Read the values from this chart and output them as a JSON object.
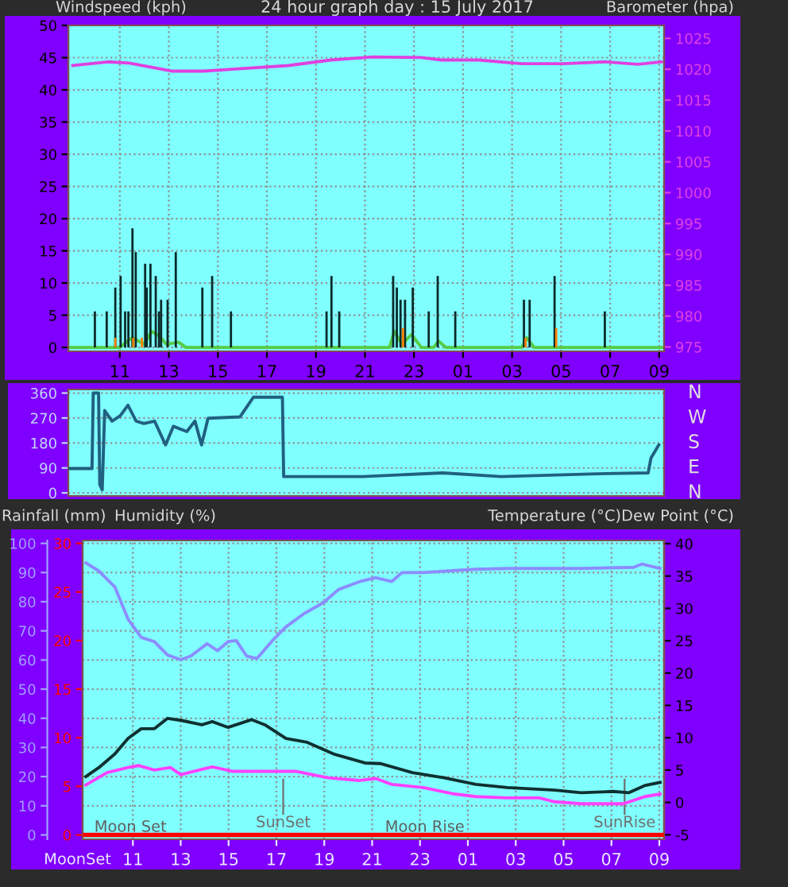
{
  "chart_data": [
    {
      "type": "line",
      "title": "24 hour graph day : 15 July 2017",
      "ylabel": "Windspeed (kph)",
      "y2label": "Barometer (hpa)",
      "xlim": [
        "2017-07-15T08:54",
        "2017-07-16T09:12"
      ],
      "xticks": [
        {
          "value": "2017-07-15T11:00",
          "label": "11"
        },
        {
          "value": "2017-07-15T13:00",
          "label": "13"
        },
        {
          "value": "2017-07-15T15:00",
          "label": "15"
        },
        {
          "value": "2017-07-15T17:00",
          "label": "17"
        },
        {
          "value": "2017-07-15T19:00",
          "label": "19"
        },
        {
          "value": "2017-07-15T21:00",
          "label": "21"
        },
        {
          "value": "2017-07-15T23:00",
          "label": "23"
        },
        {
          "value": "2017-07-16T01:00",
          "label": "01"
        },
        {
          "value": "2017-07-16T03:00",
          "label": "03"
        },
        {
          "value": "2017-07-16T05:00",
          "label": "05"
        },
        {
          "value": "2017-07-16T07:00",
          "label": "07"
        },
        {
          "value": "2017-07-16T09:00",
          "label": "09"
        }
      ],
      "ylim": [
        -0.6,
        50
      ],
      "yticks": [
        0,
        5,
        10,
        15,
        20,
        25,
        30,
        35,
        40,
        45,
        50
      ],
      "y2lim": [
        974.3,
        1027.1
      ],
      "y2ticks": [
        975,
        980,
        985,
        990,
        995,
        1000,
        1005,
        1010,
        1015,
        1020,
        1025
      ],
      "grid": true,
      "legend": false,
      "series": [
        {
          "type": "bar",
          "color": "#0a2a2a",
          "x": [
            "2017-07-15T09:59",
            "2017-07-15T10:28",
            "2017-07-15T10:49",
            "2017-07-15T11:02",
            "2017-07-15T11:13",
            "2017-07-15T11:21",
            "2017-07-15T11:31",
            "2017-07-15T11:39",
            "2017-07-15T12:02",
            "2017-07-15T12:06",
            "2017-07-15T12:15",
            "2017-07-15T12:28",
            "2017-07-15T12:36",
            "2017-07-15T12:41",
            "2017-07-15T12:57",
            "2017-07-15T13:17",
            "2017-07-15T14:22",
            "2017-07-15T14:46",
            "2017-07-15T15:32",
            "2017-07-15T19:26",
            "2017-07-15T19:38",
            "2017-07-15T19:57",
            "2017-07-15T22:09",
            "2017-07-15T22:18",
            "2017-07-15T22:27",
            "2017-07-15T22:38",
            "2017-07-15T22:57",
            "2017-07-15T23:36",
            "2017-07-15T23:58",
            "2017-07-16T00:41",
            "2017-07-16T03:29",
            "2017-07-16T03:43",
            "2017-07-16T04:44",
            "2017-07-16T06:47"
          ],
          "values": [
            5.6,
            5.6,
            9.3,
            11.1,
            5.6,
            5.6,
            18.5,
            14.8,
            13,
            9.3,
            13,
            11.1,
            5.6,
            7.4,
            7.4,
            14.8,
            9.3,
            11.1,
            5.6,
            5.6,
            11.1,
            5.6,
            11.1,
            9.3,
            7.4,
            7.4,
            9.3,
            5.6,
            11.1,
            5.6,
            7.4,
            7.4,
            11.1,
            5.6
          ]
        },
        {
          "type": "bar",
          "color": "#ff8000",
          "x": [
            "2017-07-15T10:49",
            "2017-07-15T11:33",
            "2017-07-15T11:54",
            "2017-07-15T22:33",
            "2017-07-16T03:33",
            "2017-07-16T04:48"
          ],
          "values": [
            1.5,
            1.5,
            1.5,
            3.0,
            1.5,
            3.0
          ]
        },
        {
          "type": "line",
          "color": "#55cc44",
          "x": [
            "2017-07-15T09:00",
            "2017-07-15T11:00",
            "2017-07-15T11:30",
            "2017-07-15T12:00",
            "2017-07-15T12:18",
            "2017-07-15T12:36",
            "2017-07-15T12:54",
            "2017-07-15T13:24",
            "2017-07-15T13:42",
            "2017-07-15T22:00",
            "2017-07-15T22:12",
            "2017-07-15T22:30",
            "2017-07-15T22:54",
            "2017-07-15T23:18",
            "2017-07-15T23:48",
            "2017-07-16T00:00",
            "2017-07-16T00:18",
            "2017-07-16T03:24",
            "2017-07-16T03:36",
            "2017-07-16T03:54",
            "2017-07-16T09:06"
          ],
          "values": [
            0,
            0,
            1.5,
            0.5,
            2.5,
            1.8,
            0.5,
            0.8,
            0,
            0,
            2.5,
            0.5,
            2.0,
            0,
            0,
            1.0,
            0,
            0,
            1.5,
            0,
            0
          ]
        },
        {
          "type": "line",
          "axis": "y2",
          "color": "#e040e0",
          "x": [
            "2017-07-15T09:05",
            "2017-07-15T10:31",
            "2017-07-15T11:23",
            "2017-07-15T12:28",
            "2017-07-15T13:07",
            "2017-07-15T14:25",
            "2017-07-15T15:56",
            "2017-07-15T17:52",
            "2017-07-15T19:36",
            "2017-07-15T21:20",
            "2017-07-15T23:17",
            "2017-07-16T00:08",
            "2017-07-16T01:39",
            "2017-07-16T03:23",
            "2017-07-16T05:07",
            "2017-07-16T06:50",
            "2017-07-16T08:08",
            "2017-07-16T09:06"
          ],
          "values": [
            1020.6,
            1021.2,
            1021.0,
            1020.2,
            1019.7,
            1019.7,
            1020.1,
            1020.6,
            1021.5,
            1022.0,
            1021.9,
            1021.5,
            1021.5,
            1020.9,
            1020.9,
            1021.2,
            1020.8,
            1021.2
          ]
        }
      ]
    },
    {
      "type": "line",
      "xlim": [
        "2017-07-15T08:54",
        "2017-07-16T09:12"
      ],
      "ylim": [
        -11,
        373
      ],
      "yticks": [
        0,
        90,
        180,
        270,
        360
      ],
      "annotations": [
        "N",
        "W",
        "S",
        "E",
        "N"
      ],
      "grid": "y",
      "tick_labels": "y",
      "legend": false,
      "series": [
        {
          "color": "#206080",
          "x": [
            "2017-07-15T08:56",
            "2017-07-15T09:52",
            "2017-07-15T09:55",
            "2017-07-15T10:08",
            "2017-07-15T10:11",
            "2017-07-15T10:17",
            "2017-07-15T10:23",
            "2017-07-15T10:41",
            "2017-07-15T11:01",
            "2017-07-15T11:20",
            "2017-07-15T11:40",
            "2017-07-15T11:59",
            "2017-07-15T12:25",
            "2017-07-15T12:52",
            "2017-07-15T13:11",
            "2017-07-15T13:44",
            "2017-07-15T14:04",
            "2017-07-15T14:20",
            "2017-07-15T14:36",
            "2017-07-15T15:54",
            "2017-07-15T16:27",
            "2017-07-15T17:38",
            "2017-07-15T17:41",
            "2017-07-15T20:55",
            "2017-07-16T00:10",
            "2017-07-16T02:34",
            "2017-07-16T06:29",
            "2017-07-16T08:33",
            "2017-07-16T08:40",
            "2017-07-16T08:59"
          ],
          "values": [
            88,
            88,
            360,
            360,
            30,
            11,
            297,
            259,
            278,
            316,
            259,
            250,
            259,
            173,
            240,
            221,
            259,
            173,
            269,
            274,
            345,
            345,
            59,
            59,
            72,
            59,
            69,
            72,
            126,
            173
          ]
        }
      ]
    },
    {
      "type": "line",
      "ylabel": "Humidity (%)",
      "y3label": "Rainfall (mm)",
      "y2label": "Temperature (°C)Dew Point (°C)",
      "xlim": [
        "2017-07-15T08:54",
        "2017-07-16T09:12"
      ],
      "xticks": [
        {
          "value": "2017-07-15T11:00",
          "label": "11"
        },
        {
          "value": "2017-07-15T13:00",
          "label": "13"
        },
        {
          "value": "2017-07-15T15:00",
          "label": "15"
        },
        {
          "value": "2017-07-15T17:00",
          "label": "17"
        },
        {
          "value": "2017-07-15T19:00",
          "label": "19"
        },
        {
          "value": "2017-07-15T21:00",
          "label": "21"
        },
        {
          "value": "2017-07-15T23:00",
          "label": "23"
        },
        {
          "value": "2017-07-16T01:00",
          "label": "01"
        },
        {
          "value": "2017-07-16T03:00",
          "label": "03"
        },
        {
          "value": "2017-07-16T05:00",
          "label": "05"
        },
        {
          "value": "2017-07-16T07:00",
          "label": "07"
        },
        {
          "value": "2017-07-16T09:00",
          "label": "09"
        }
      ],
      "ylim": [
        -1.5,
        101
      ],
      "yticks": [
        0,
        10,
        20,
        30,
        40,
        50,
        60,
        70,
        80,
        90,
        100
      ],
      "y2lim": [
        -5.7,
        40.5
      ],
      "y2ticks": [
        -5,
        0,
        5,
        10,
        15,
        20,
        25,
        30,
        35,
        40
      ],
      "y3lim": [
        -0.45,
        30.3
      ],
      "y3ticks": [
        0,
        5,
        10,
        15,
        20,
        25,
        30
      ],
      "grid": true,
      "legend": false,
      "ref_lines": [
        {
          "axis": "x",
          "value": "2017-07-15T17:17",
          "label": "SunSet",
          "color": "#707070"
        },
        {
          "axis": "x",
          "value": "2017-07-16T07:33",
          "label": "SunRise",
          "color": "#707070"
        }
      ],
      "annotations": [
        {
          "text": "Moon Set",
          "x": "2017-07-15T10:54",
          "y": 0
        },
        {
          "text": "Moon Rise",
          "x": "2017-07-15T23:12",
          "y": 0
        },
        "MoonSet"
      ],
      "series": [
        {
          "color": "#8c8cff",
          "x": [
            "2017-07-15T09:02",
            "2017-07-15T09:35",
            "2017-07-15T10:15",
            "2017-07-15T10:48",
            "2017-07-15T11:21",
            "2017-07-15T11:54",
            "2017-07-15T12:27",
            "2017-07-15T13:00",
            "2017-07-15T13:26",
            "2017-07-15T14:06",
            "2017-07-15T14:32",
            "2017-07-15T14:59",
            "2017-07-15T15:19",
            "2017-07-15T15:45",
            "2017-07-15T16:11",
            "2017-07-15T16:51",
            "2017-07-15T17:24",
            "2017-07-15T18:10",
            "2017-07-15T18:57",
            "2017-07-15T19:36",
            "2017-07-15T20:29",
            "2017-07-15T21:09",
            "2017-07-15T21:49",
            "2017-07-15T22:15",
            "2017-07-15T23:08",
            "2017-07-16T00:27",
            "2017-07-16T01:20",
            "2017-07-16T02:39",
            "2017-07-16T05:44",
            "2017-07-16T07:56",
            "2017-07-16T08:16",
            "2017-07-16T09:02"
          ],
          "values": [
            93.3,
            90.5,
            85,
            74,
            67.8,
            66.3,
            61.7,
            60.1,
            61.4,
            65.6,
            63.2,
            66.3,
            66.7,
            61.4,
            60.5,
            66.8,
            71.4,
            76,
            79.6,
            84.2,
            86.9,
            88.2,
            86.9,
            90,
            90,
            90.7,
            91.1,
            91.4,
            91.4,
            91.8,
            92.9,
            91.4
          ]
        },
        {
          "axis": "y2",
          "color": "#103030",
          "x": [
            "2017-07-15T09:02",
            "2017-07-15T09:35",
            "2017-07-15T10:15",
            "2017-07-15T10:48",
            "2017-07-15T11:21",
            "2017-07-15T11:54",
            "2017-07-15T12:27",
            "2017-07-15T13:00",
            "2017-07-15T13:53",
            "2017-07-15T14:19",
            "2017-07-15T14:59",
            "2017-07-15T15:58",
            "2017-07-15T16:31",
            "2017-07-15T17:24",
            "2017-07-15T18:17",
            "2017-07-15T19:23",
            "2017-07-15T20:42",
            "2017-07-15T21:22",
            "2017-07-15T22:41",
            "2017-07-16T00:01",
            "2017-07-16T01:20",
            "2017-07-16T02:39",
            "2017-07-16T04:38",
            "2017-07-16T05:44",
            "2017-07-16T07:04",
            "2017-07-16T07:43",
            "2017-07-16T08:23",
            "2017-07-16T09:02"
          ],
          "values": [
            4.0,
            5.4,
            7.5,
            9.9,
            11.4,
            11.4,
            13.0,
            12.7,
            12.0,
            12.5,
            11.6,
            12.8,
            12.0,
            9.9,
            9.3,
            7.5,
            6.1,
            6.0,
            4.6,
            3.8,
            2.8,
            2.3,
            1.9,
            1.5,
            1.7,
            1.5,
            2.6,
            3.1
          ]
        },
        {
          "axis": "y2",
          "color": "#ff40ff",
          "x": [
            "2017-07-15T09:02",
            "2017-07-15T09:55",
            "2017-07-15T10:48",
            "2017-07-15T11:14",
            "2017-07-15T11:54",
            "2017-07-15T12:34",
            "2017-07-15T13:00",
            "2017-07-15T14:19",
            "2017-07-15T15:12",
            "2017-07-15T16:31",
            "2017-07-15T17:50",
            "2017-07-15T19:10",
            "2017-07-15T20:29",
            "2017-07-15T21:09",
            "2017-07-15T21:49",
            "2017-07-15T23:08",
            "2017-07-16T00:27",
            "2017-07-16T01:20",
            "2017-07-16T02:39",
            "2017-07-16T03:59",
            "2017-07-16T04:38",
            "2017-07-16T05:44",
            "2017-07-16T07:30",
            "2017-07-16T08:23",
            "2017-07-16T09:02"
          ],
          "values": [
            2.7,
            4.6,
            5.4,
            5.7,
            5.0,
            5.4,
            4.3,
            5.5,
            4.8,
            4.8,
            4.8,
            3.8,
            3.4,
            3.7,
            2.8,
            2.3,
            1.3,
            0.9,
            0.7,
            0.7,
            0.1,
            -0.2,
            -0.2,
            0.9,
            1.3
          ]
        },
        {
          "axis": "y3",
          "color": "#ff0000",
          "x": [
            "2017-07-15T09:00",
            "2017-07-16T09:06"
          ],
          "values": [
            0,
            0
          ]
        }
      ]
    }
  ]
}
